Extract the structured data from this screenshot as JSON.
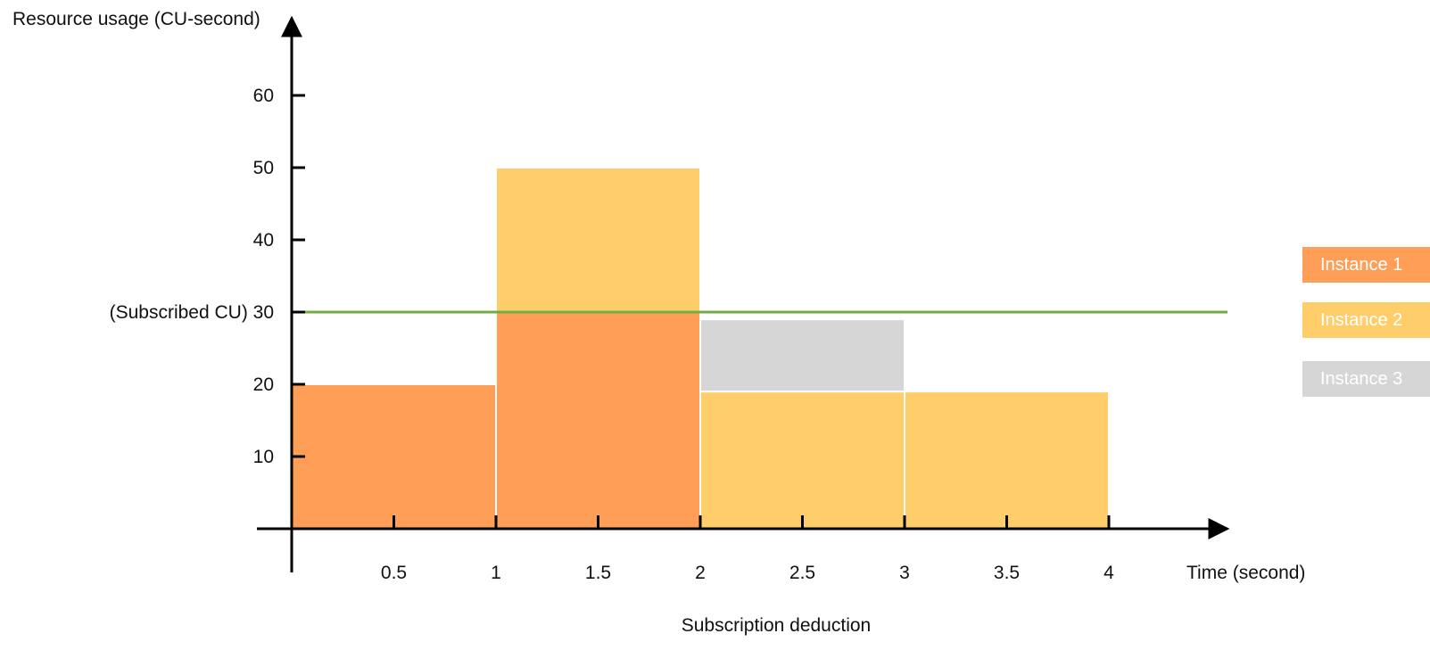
{
  "chart_data": {
    "type": "bar",
    "subtitle": "Subscription deduction",
    "ylabel": "Resource usage (CU-second)",
    "xlabel": "Time (second)",
    "x_ticks": [
      0.5,
      1,
      1.5,
      2,
      2.5,
      3,
      3.5,
      4
    ],
    "x_tick_labels": [
      "0.5",
      "1",
      "1.5",
      "2",
      "2.5",
      "3",
      "3.5",
      "4"
    ],
    "y_ticks": [
      10,
      20,
      30,
      40,
      50,
      60
    ],
    "y_tick_labels": [
      "10",
      "20",
      "(Subscribed CU) 30",
      "40",
      "50",
      "60"
    ],
    "xlim": [
      0,
      4.6
    ],
    "ylim": [
      0,
      70
    ],
    "legend_position": "right",
    "subscribed_cu": 30,
    "subscribed_line_color": "#70ad47",
    "series": [
      {
        "name": "Instance 1",
        "color": "#ff9e57",
        "segments": [
          {
            "x_start": 0,
            "x_end": 1,
            "y_start": 0,
            "y_end": 20
          },
          {
            "x_start": 1,
            "x_end": 2,
            "y_start": 0,
            "y_end": 30
          }
        ]
      },
      {
        "name": "Instance 2",
        "color": "#ffce6b",
        "segments": [
          {
            "x_start": 1,
            "x_end": 2,
            "y_start": 30,
            "y_end": 50
          },
          {
            "x_start": 2,
            "x_end": 3,
            "y_start": 0,
            "y_end": 19
          },
          {
            "x_start": 3,
            "x_end": 4,
            "y_start": 0,
            "y_end": 19
          }
        ]
      },
      {
        "name": "Instance 3",
        "color": "#d6d6d6",
        "segments": [
          {
            "x_start": 2,
            "x_end": 3,
            "y_start": 19,
            "y_end": 29
          }
        ]
      }
    ]
  }
}
